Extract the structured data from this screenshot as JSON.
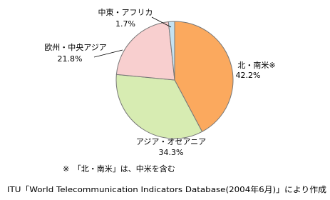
{
  "chart_data": {
    "type": "pie",
    "categories": [
      "北・南米※",
      "アジア・オセアニア",
      "欧州・中央アジア",
      "中東・アフリカ"
    ],
    "values": [
      42.2,
      34.3,
      21.8,
      1.7
    ],
    "value_labels": [
      "42.2%",
      "34.3%",
      "21.8%",
      "1.7%"
    ],
    "colors": [
      "#fba95e",
      "#d7ecb2",
      "#f8cfcf",
      "#c4e2f2"
    ],
    "note": "※　「北・南米」は、中米を含む",
    "source": "ITU「World Telecommunication Indicators Database(2004年6月)」により作成"
  }
}
